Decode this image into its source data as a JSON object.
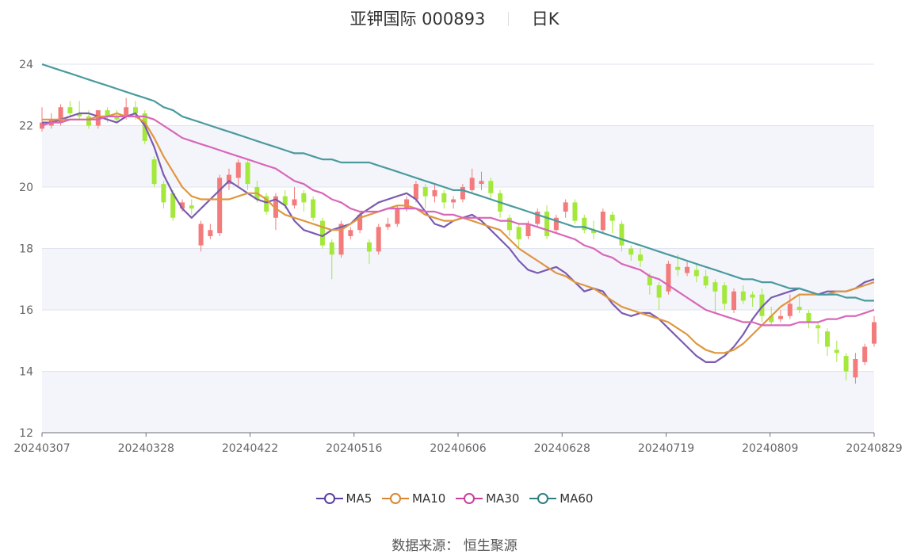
{
  "header": {
    "title": "亚钾国际 000893",
    "period": "日K"
  },
  "footer": {
    "source": "数据来源： 恒生聚源"
  },
  "colors": {
    "up": "#f37b7b",
    "down": "#a4e83c",
    "ma5": "#7a5bb0",
    "ma10": "#e0963e",
    "ma30": "#d966b8",
    "ma60": "#4a9a9e"
  },
  "chart_data": {
    "type": "candlestick",
    "ylim": [
      12,
      24
    ],
    "yticks": [
      "12",
      "14",
      "16",
      "18",
      "20",
      "22",
      "24"
    ],
    "xticks": [
      "20240307",
      "20240328",
      "20240422",
      "20240516",
      "20240606",
      "20240628",
      "20240719",
      "20240809",
      "20240829"
    ],
    "legend": [
      "MA5",
      "MA10",
      "MA30",
      "MA60"
    ],
    "series": [
      {
        "name": "MA5",
        "values": [
          22.1,
          22.1,
          22.2,
          22.3,
          22.4,
          22.4,
          22.3,
          22.2,
          22.1,
          22.3,
          22.4,
          22.0,
          21.3,
          20.4,
          19.8,
          19.3,
          19.0,
          19.3,
          19.6,
          19.9,
          20.2,
          20.0,
          19.8,
          19.6,
          19.5,
          19.6,
          19.4,
          18.9,
          18.6,
          18.5,
          18.4,
          18.6,
          18.7,
          18.8,
          19.1,
          19.3,
          19.5,
          19.6,
          19.7,
          19.8,
          19.6,
          19.2,
          18.8,
          18.7,
          18.9,
          19.0,
          19.1,
          18.9,
          18.6,
          18.3,
          18.0,
          17.6,
          17.3,
          17.2,
          17.3,
          17.4,
          17.2,
          16.9,
          16.6,
          16.7,
          16.6,
          16.2,
          15.9,
          15.8,
          15.9,
          15.9,
          15.7,
          15.4,
          15.1,
          14.8,
          14.5,
          14.3,
          14.3,
          14.5,
          14.8,
          15.2,
          15.7,
          16.1,
          16.4,
          16.5,
          16.6,
          16.7,
          16.6,
          16.5,
          16.6,
          16.6,
          16.6,
          16.7,
          16.9,
          17.0
        ]
      },
      {
        "name": "MA10",
        "values": [
          22.2,
          22.2,
          22.2,
          22.2,
          22.2,
          22.2,
          22.3,
          22.3,
          22.4,
          22.3,
          22.3,
          22.1,
          21.6,
          21.0,
          20.5,
          20.0,
          19.7,
          19.6,
          19.6,
          19.6,
          19.6,
          19.7,
          19.8,
          19.8,
          19.6,
          19.3,
          19.1,
          19.0,
          18.9,
          18.8,
          18.7,
          18.6,
          18.6,
          18.8,
          19.0,
          19.1,
          19.2,
          19.3,
          19.4,
          19.4,
          19.3,
          19.1,
          19.0,
          18.9,
          18.9,
          19.0,
          18.9,
          18.8,
          18.7,
          18.6,
          18.3,
          18.0,
          17.8,
          17.6,
          17.4,
          17.2,
          17.1,
          16.9,
          16.8,
          16.7,
          16.5,
          16.3,
          16.1,
          16.0,
          15.9,
          15.8,
          15.7,
          15.6,
          15.4,
          15.2,
          14.9,
          14.7,
          14.6,
          14.6,
          14.7,
          14.9,
          15.2,
          15.5,
          15.8,
          16.1,
          16.3,
          16.5,
          16.5,
          16.5,
          16.5,
          16.6,
          16.6,
          16.7,
          16.8,
          16.9
        ]
      },
      {
        "name": "MA30",
        "values": [
          22.0,
          22.1,
          22.1,
          22.2,
          22.2,
          22.2,
          22.2,
          22.3,
          22.3,
          22.3,
          22.3,
          22.3,
          22.2,
          22.0,
          21.8,
          21.6,
          21.5,
          21.4,
          21.3,
          21.2,
          21.1,
          21.0,
          20.9,
          20.8,
          20.7,
          20.6,
          20.4,
          20.2,
          20.1,
          19.9,
          19.8,
          19.6,
          19.5,
          19.3,
          19.2,
          19.2,
          19.2,
          19.3,
          19.3,
          19.3,
          19.3,
          19.2,
          19.2,
          19.1,
          19.1,
          19.0,
          19.0,
          19.0,
          19.0,
          18.9,
          18.9,
          18.8,
          18.8,
          18.7,
          18.6,
          18.5,
          18.4,
          18.3,
          18.1,
          18.0,
          17.8,
          17.7,
          17.5,
          17.4,
          17.3,
          17.1,
          17.0,
          16.8,
          16.6,
          16.4,
          16.2,
          16.0,
          15.9,
          15.8,
          15.7,
          15.6,
          15.6,
          15.5,
          15.5,
          15.5,
          15.5,
          15.6,
          15.6,
          15.6,
          15.7,
          15.7,
          15.8,
          15.8,
          15.9,
          16.0
        ]
      },
      {
        "name": "MA60",
        "values": [
          24.0,
          23.9,
          23.8,
          23.7,
          23.6,
          23.5,
          23.4,
          23.3,
          23.2,
          23.1,
          23.0,
          22.9,
          22.8,
          22.6,
          22.5,
          22.3,
          22.2,
          22.1,
          22.0,
          21.9,
          21.8,
          21.7,
          21.6,
          21.5,
          21.4,
          21.3,
          21.2,
          21.1,
          21.1,
          21.0,
          20.9,
          20.9,
          20.8,
          20.8,
          20.8,
          20.8,
          20.7,
          20.6,
          20.5,
          20.4,
          20.3,
          20.2,
          20.1,
          20.0,
          19.9,
          19.9,
          19.8,
          19.7,
          19.6,
          19.5,
          19.4,
          19.3,
          19.2,
          19.1,
          19.0,
          18.9,
          18.8,
          18.7,
          18.7,
          18.6,
          18.5,
          18.4,
          18.3,
          18.2,
          18.1,
          18.0,
          17.9,
          17.8,
          17.7,
          17.6,
          17.5,
          17.4,
          17.3,
          17.2,
          17.1,
          17.0,
          17.0,
          16.9,
          16.9,
          16.8,
          16.7,
          16.7,
          16.6,
          16.5,
          16.5,
          16.5,
          16.4,
          16.4,
          16.3,
          16.3
        ]
      },
      {
        "name": "OHLC",
        "values": [
          [
            21.9,
            22.1,
            22.6,
            21.8
          ],
          [
            22.0,
            22.2,
            22.4,
            21.9
          ],
          [
            22.1,
            22.6,
            22.7,
            22.0
          ],
          [
            22.6,
            22.4,
            22.8,
            22.3
          ],
          [
            22.4,
            22.3,
            22.8,
            22.2
          ],
          [
            22.3,
            22.0,
            22.5,
            21.9
          ],
          [
            22.0,
            22.5,
            22.5,
            21.9
          ],
          [
            22.5,
            22.3,
            22.6,
            22.1
          ],
          [
            22.3,
            22.2,
            22.5,
            22.1
          ],
          [
            22.3,
            22.6,
            22.9,
            22.2
          ],
          [
            22.6,
            22.4,
            22.8,
            22.2
          ],
          [
            22.4,
            21.5,
            22.5,
            21.4
          ],
          [
            20.9,
            20.1,
            21.0,
            20.0
          ],
          [
            20.1,
            19.5,
            20.2,
            19.3
          ],
          [
            19.8,
            19.0,
            19.9,
            18.9
          ],
          [
            19.3,
            19.5,
            19.6,
            19.2
          ],
          [
            19.4,
            19.3,
            19.6,
            19.1
          ],
          [
            18.1,
            18.8,
            18.9,
            17.9
          ],
          [
            18.4,
            18.6,
            18.8,
            18.3
          ],
          [
            18.5,
            20.3,
            20.4,
            18.4
          ],
          [
            20.1,
            20.4,
            20.6,
            19.9
          ],
          [
            20.3,
            20.8,
            20.9,
            20.0
          ],
          [
            20.8,
            20.1,
            20.9,
            19.9
          ],
          [
            20.0,
            19.6,
            20.2,
            19.5
          ],
          [
            19.7,
            19.2,
            19.8,
            19.1
          ],
          [
            19.0,
            19.7,
            19.8,
            18.6
          ],
          [
            19.7,
            19.4,
            19.9,
            19.3
          ],
          [
            19.4,
            19.6,
            20.0,
            19.3
          ],
          [
            19.8,
            19.5,
            19.9,
            19.2
          ],
          [
            19.6,
            19.0,
            19.7,
            18.9
          ],
          [
            18.9,
            18.1,
            19.0,
            18.0
          ],
          [
            18.2,
            17.8,
            18.3,
            17.0
          ],
          [
            17.8,
            18.8,
            18.9,
            17.7
          ],
          [
            18.4,
            18.6,
            18.7,
            18.3
          ],
          [
            18.6,
            19.1,
            19.2,
            18.5
          ],
          [
            18.2,
            17.9,
            18.3,
            17.5
          ],
          [
            17.9,
            18.7,
            18.8,
            17.8
          ],
          [
            18.7,
            18.8,
            19.0,
            18.6
          ],
          [
            18.8,
            19.3,
            19.4,
            18.7
          ],
          [
            19.3,
            19.6,
            19.7,
            19.2
          ],
          [
            19.6,
            20.1,
            20.2,
            19.5
          ],
          [
            20.0,
            19.7,
            20.1,
            19.3
          ],
          [
            19.7,
            19.9,
            20.1,
            19.5
          ],
          [
            19.8,
            19.5,
            19.9,
            19.3
          ],
          [
            19.5,
            19.6,
            19.7,
            19.3
          ],
          [
            19.6,
            20.0,
            20.1,
            19.5
          ],
          [
            19.9,
            20.3,
            20.6,
            19.8
          ],
          [
            20.1,
            20.2,
            20.5,
            19.9
          ],
          [
            20.2,
            19.8,
            20.3,
            19.6
          ],
          [
            19.8,
            19.2,
            19.9,
            19.0
          ],
          [
            19.0,
            18.6,
            19.1,
            18.4
          ],
          [
            18.7,
            18.3,
            18.8,
            18.0
          ],
          [
            18.4,
            18.8,
            18.9,
            18.3
          ],
          [
            18.8,
            19.2,
            19.3,
            18.7
          ],
          [
            19.2,
            18.4,
            19.4,
            18.3
          ],
          [
            18.6,
            19.0,
            19.1,
            18.5
          ],
          [
            19.2,
            19.5,
            19.6,
            19.0
          ],
          [
            19.5,
            18.9,
            19.6,
            18.8
          ],
          [
            19.0,
            18.6,
            19.1,
            18.5
          ],
          [
            18.6,
            18.5,
            18.9,
            18.3
          ],
          [
            18.6,
            19.2,
            19.3,
            18.5
          ],
          [
            19.1,
            18.9,
            19.2,
            18.5
          ],
          [
            18.8,
            18.1,
            18.9,
            17.9
          ],
          [
            18.0,
            17.8,
            18.1,
            17.6
          ],
          [
            17.8,
            17.6,
            18.0,
            17.4
          ],
          [
            17.1,
            16.8,
            17.2,
            16.5
          ],
          [
            16.8,
            16.4,
            16.9,
            16.0
          ],
          [
            16.6,
            17.5,
            17.6,
            16.5
          ],
          [
            17.4,
            17.3,
            17.8,
            17.1
          ],
          [
            17.2,
            17.4,
            17.6,
            17.1
          ],
          [
            17.3,
            17.1,
            17.5,
            16.9
          ],
          [
            17.1,
            16.8,
            17.3,
            16.7
          ],
          [
            16.9,
            16.6,
            17.0,
            15.9
          ],
          [
            16.8,
            16.2,
            16.9,
            16.0
          ],
          [
            16.0,
            16.6,
            16.7,
            15.9
          ],
          [
            16.6,
            16.3,
            16.8,
            16.2
          ],
          [
            16.5,
            16.4,
            16.6,
            16.1
          ],
          [
            16.5,
            15.8,
            16.7,
            15.6
          ],
          [
            15.8,
            15.6,
            16.1,
            15.5
          ],
          [
            15.7,
            15.8,
            16.0,
            15.6
          ],
          [
            15.8,
            16.2,
            16.5,
            15.7
          ],
          [
            16.1,
            16.0,
            16.5,
            15.9
          ],
          [
            15.9,
            15.6,
            16.0,
            15.4
          ],
          [
            15.5,
            15.4,
            15.6,
            14.9
          ],
          [
            15.3,
            14.8,
            15.4,
            14.5
          ],
          [
            14.7,
            14.6,
            15.0,
            14.3
          ],
          [
            14.5,
            14.0,
            14.6,
            13.7
          ],
          [
            13.8,
            14.4,
            14.6,
            13.6
          ],
          [
            14.3,
            14.8,
            14.9,
            14.2
          ],
          [
            14.9,
            15.6,
            15.8,
            14.8
          ]
        ]
      }
    ]
  }
}
